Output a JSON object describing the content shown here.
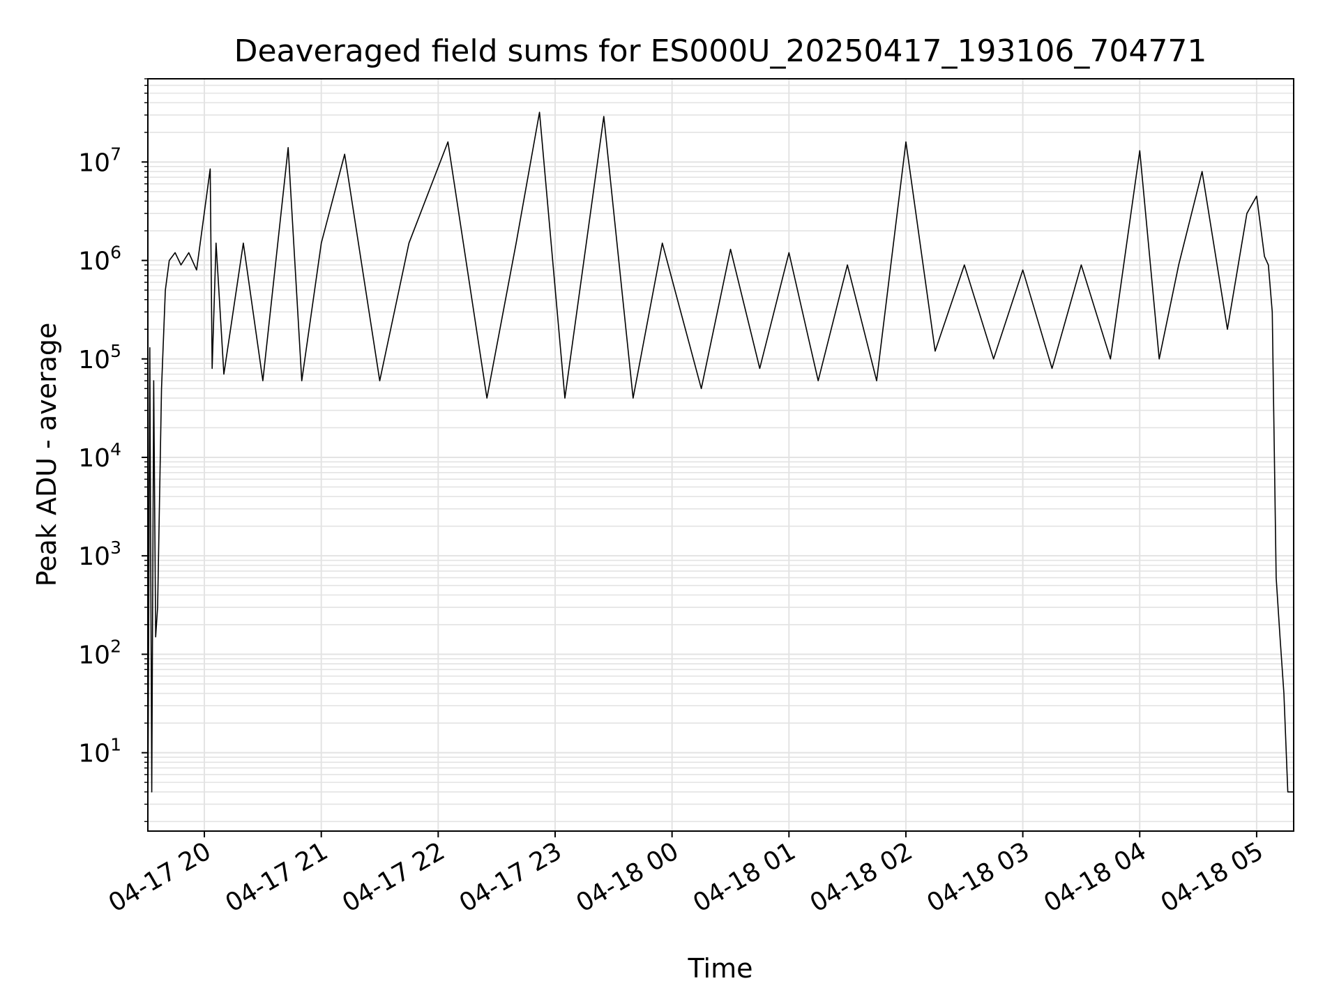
{
  "chart_data": {
    "type": "line",
    "title": "Deaveraged field sums for ES000U_20250417_193106_704771",
    "xlabel": "Time",
    "ylabel": "Peak ADU - average",
    "yscale": "log",
    "ylim": [
      1.6,
      70000000
    ],
    "xlim": [
      "2025-04-17 19:31",
      "2025-04-18 05:19"
    ],
    "grid": true,
    "line_color": "#000000",
    "grid_color": "#e3e3e3",
    "x_ticks": [
      {
        "value": "2025-04-17 20:00",
        "label": "04-17 20"
      },
      {
        "value": "2025-04-17 21:00",
        "label": "04-17 21"
      },
      {
        "value": "2025-04-17 22:00",
        "label": "04-17 22"
      },
      {
        "value": "2025-04-17 23:00",
        "label": "04-17 23"
      },
      {
        "value": "2025-04-18 00:00",
        "label": "04-18 00"
      },
      {
        "value": "2025-04-18 01:00",
        "label": "04-18 01"
      },
      {
        "value": "2025-04-18 02:00",
        "label": "04-18 02"
      },
      {
        "value": "2025-04-18 03:00",
        "label": "04-18 03"
      },
      {
        "value": "2025-04-18 04:00",
        "label": "04-18 04"
      },
      {
        "value": "2025-04-18 05:00",
        "label": "04-18 05"
      }
    ],
    "y_ticks": [
      {
        "value": 10,
        "base": "10",
        "exp": "1"
      },
      {
        "value": 100,
        "base": "10",
        "exp": "2"
      },
      {
        "value": 1000,
        "base": "10",
        "exp": "3"
      },
      {
        "value": 10000,
        "base": "10",
        "exp": "4"
      },
      {
        "value": 100000,
        "base": "10",
        "exp": "5"
      },
      {
        "value": 1000000,
        "base": "10",
        "exp": "6"
      },
      {
        "value": 10000000,
        "base": "10",
        "exp": "7"
      }
    ],
    "series": [
      {
        "x": [
          "2025-04-17 19:31",
          "2025-04-17 19:32",
          "2025-04-17 19:33",
          "2025-04-17 19:34",
          "2025-04-17 19:35",
          "2025-04-17 19:36",
          "2025-04-17 19:38",
          "2025-04-17 19:40",
          "2025-04-17 19:42",
          "2025-04-17 19:45",
          "2025-04-17 19:48",
          "2025-04-17 19:52",
          "2025-04-17 19:56",
          "2025-04-17 20:03",
          "2025-04-17 20:04",
          "2025-04-17 20:06",
          "2025-04-17 20:10",
          "2025-04-17 20:20",
          "2025-04-17 20:30",
          "2025-04-17 20:43",
          "2025-04-17 20:50",
          "2025-04-17 21:00",
          "2025-04-17 21:12",
          "2025-04-17 21:30",
          "2025-04-17 21:45",
          "2025-04-17 22:05",
          "2025-04-17 22:25",
          "2025-04-17 22:40",
          "2025-04-17 22:52",
          "2025-04-17 23:05",
          "2025-04-17 23:25",
          "2025-04-17 23:40",
          "2025-04-17 23:55",
          "2025-04-18 00:15",
          "2025-04-18 00:30",
          "2025-04-18 00:45",
          "2025-04-18 01:00",
          "2025-04-18 01:15",
          "2025-04-18 01:30",
          "2025-04-18 01:45",
          "2025-04-18 02:00",
          "2025-04-18 02:15",
          "2025-04-18 02:30",
          "2025-04-18 02:45",
          "2025-04-18 03:00",
          "2025-04-18 03:15",
          "2025-04-18 03:30",
          "2025-04-18 03:45",
          "2025-04-18 04:00",
          "2025-04-18 04:10",
          "2025-04-18 04:20",
          "2025-04-18 04:32",
          "2025-04-18 04:45",
          "2025-04-18 04:55",
          "2025-04-18 05:00",
          "2025-04-18 05:04",
          "2025-04-18 05:06",
          "2025-04-18 05:08",
          "2025-04-18 05:10",
          "2025-04-18 05:12",
          "2025-04-18 05:14",
          "2025-04-18 05:16",
          "2025-04-18 05:19"
        ],
        "values": [
          1.6,
          130000,
          4,
          60000,
          150,
          300,
          50000,
          500000,
          1000000,
          1200000,
          900000,
          1200000,
          800000,
          8500000,
          80000,
          1500000,
          70000,
          1500000,
          60000,
          14000000,
          60000,
          1500000,
          12000000,
          60000,
          1500000,
          16000000,
          40000,
          1500000,
          32000000,
          40000,
          29000000,
          40000,
          1500000,
          50000,
          1300000,
          80000,
          1200000,
          60000,
          900000,
          60000,
          16000000,
          120000,
          900000,
          100000,
          800000,
          80000,
          900000,
          100000,
          13000000,
          100000,
          900000,
          8000000,
          200000,
          3000000,
          4500000,
          1100000,
          900000,
          300000,
          600,
          150,
          40,
          4,
          4
        ]
      }
    ]
  }
}
